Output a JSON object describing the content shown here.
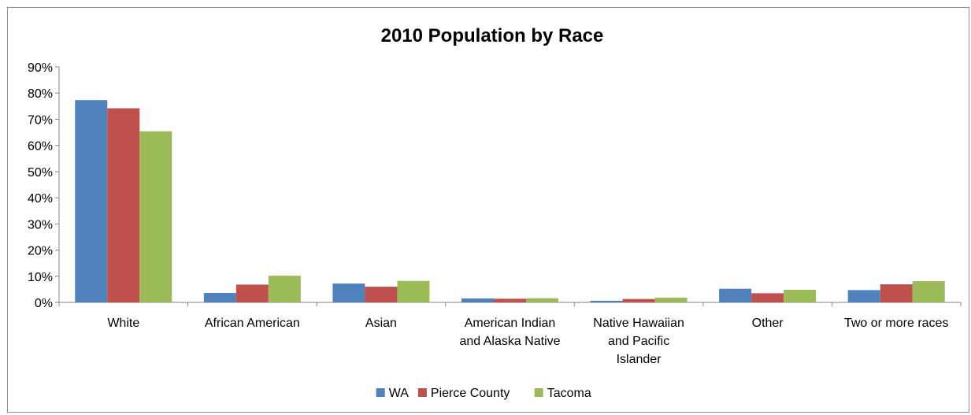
{
  "chart_data": {
    "type": "bar",
    "title": "2010 Population by Race",
    "xlabel": "",
    "ylabel": "",
    "ylim": [
      0,
      90
    ],
    "yticks": [
      "0%",
      "10%",
      "20%",
      "30%",
      "40%",
      "50%",
      "60%",
      "70%",
      "80%",
      "90%"
    ],
    "categories": [
      [
        "White"
      ],
      [
        "African American"
      ],
      [
        "Asian"
      ],
      [
        "American Indian",
        "and Alaska Native"
      ],
      [
        "Native Hawaiian",
        "and Pacific",
        "Islander"
      ],
      [
        "Other"
      ],
      [
        "Two or more races"
      ]
    ],
    "series": [
      {
        "name": "WA",
        "color": "#4f81bd",
        "values": [
          77.3,
          3.6,
          7.2,
          1.5,
          0.6,
          5.2,
          4.7
        ]
      },
      {
        "name": "Pierce County",
        "color": "#c0504d",
        "values": [
          74.2,
          6.8,
          6.0,
          1.4,
          1.3,
          3.5,
          6.9
        ]
      },
      {
        "name": "Tacoma",
        "color": "#9bbb59",
        "values": [
          65.4,
          10.2,
          8.2,
          1.6,
          1.8,
          4.8,
          8.1
        ]
      }
    ],
    "grid": false,
    "legend_position": "bottom"
  }
}
